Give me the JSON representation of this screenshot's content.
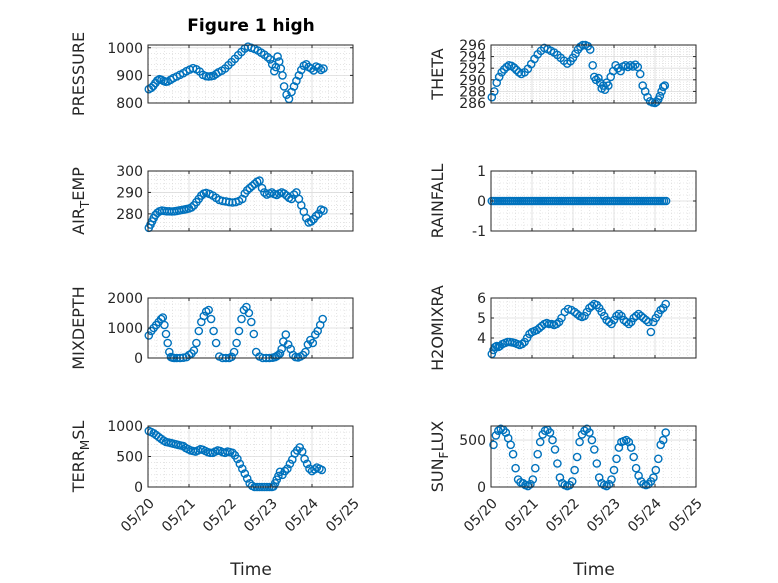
{
  "chart_data": [
    {
      "type": "scatter",
      "title": "Figure 1 high",
      "ylabel": {
        "main": "PRESSURE"
      },
      "xlim": [
        0,
        5
      ],
      "ylim": [
        800,
        1010
      ],
      "yticks": [
        800,
        900,
        1000
      ],
      "ytick_labels": [
        "800",
        "900",
        "1000"
      ],
      "xticks": [
        0,
        1,
        2,
        3,
        4,
        5
      ],
      "grid": true,
      "minor_grid": true,
      "x": [
        0.02,
        0.08,
        0.13,
        0.18,
        0.23,
        0.28,
        0.33,
        0.38,
        0.43,
        0.48,
        0.55,
        0.62,
        0.7,
        0.78,
        0.86,
        0.94,
        1.02,
        1.1,
        1.18,
        1.26,
        1.34,
        1.42,
        1.48,
        1.54,
        1.6,
        1.66,
        1.72,
        1.8,
        1.88,
        1.96,
        2.04,
        2.12,
        2.2,
        2.28,
        2.36,
        2.44,
        2.52,
        2.6,
        2.68,
        2.76,
        2.84,
        2.92,
        2.98,
        3.03,
        3.08,
        3.12,
        3.16,
        3.2,
        3.24,
        3.28,
        3.32,
        3.38,
        3.44,
        3.5,
        3.56,
        3.62,
        3.68,
        3.74,
        3.8,
        3.86,
        3.92,
        3.98,
        4.04,
        4.1,
        4.16,
        4.22,
        4.28
      ],
      "y": [
        850,
        855,
        862,
        872,
        882,
        886,
        884,
        880,
        877,
        878,
        884,
        890,
        896,
        902,
        908,
        915,
        921,
        926,
        922,
        914,
        902,
        897,
        896,
        897,
        899,
        905,
        911,
        917,
        925,
        937,
        948,
        960,
        973,
        985,
        997,
        1004,
        1000,
        996,
        990,
        982,
        975,
        966,
        958,
        940,
        915,
        930,
        968,
        950,
        925,
        900,
        860,
        830,
        815,
        840,
        860,
        880,
        900,
        920,
        935,
        940,
        930,
        925,
        918,
        932,
        928,
        920,
        925
      ]
    },
    {
      "type": "scatter",
      "title": "",
      "ylabel": {
        "main": "THETA"
      },
      "xlim": [
        0,
        5
      ],
      "ylim": [
        286,
        296
      ],
      "yticks": [
        286,
        288,
        290,
        292,
        294,
        296
      ],
      "ytick_labels": [
        "286",
        "288",
        "290",
        "292",
        "294",
        "296"
      ],
      "xticks": [
        0,
        1,
        2,
        3,
        4,
        5
      ],
      "grid": true,
      "minor_grid": true,
      "x": [
        0.02,
        0.08,
        0.14,
        0.2,
        0.26,
        0.32,
        0.38,
        0.44,
        0.5,
        0.56,
        0.62,
        0.68,
        0.74,
        0.82,
        0.9,
        0.98,
        1.06,
        1.14,
        1.22,
        1.3,
        1.38,
        1.46,
        1.54,
        1.62,
        1.7,
        1.78,
        1.86,
        1.94,
        2.0,
        2.06,
        2.12,
        2.18,
        2.24,
        2.3,
        2.36,
        2.42,
        2.48,
        2.52,
        2.56,
        2.62,
        2.66,
        2.7,
        2.74,
        2.78,
        2.82,
        2.86,
        2.92,
        2.98,
        3.04,
        3.1,
        3.16,
        3.22,
        3.28,
        3.34,
        3.4,
        3.46,
        3.52,
        3.58,
        3.64,
        3.7,
        3.76,
        3.82,
        3.88,
        3.94,
        4.0,
        4.04,
        4.08,
        4.12,
        4.16,
        4.2,
        4.24
      ],
      "y": [
        287,
        288,
        289.5,
        290.5,
        291.3,
        291.8,
        292.2,
        292.5,
        292.4,
        292.1,
        291.7,
        291.3,
        291.0,
        291.3,
        291.9,
        292.7,
        293.6,
        294.4,
        295.0,
        295.5,
        295.3,
        295.0,
        294.7,
        294.3,
        293.8,
        293.3,
        292.8,
        293.2,
        293.8,
        294.5,
        295.2,
        295.7,
        296.0,
        296.0,
        295.8,
        295.2,
        292.5,
        290.5,
        290.0,
        290.3,
        289.5,
        288.5,
        289,
        288.3,
        289.5,
        289,
        290.5,
        291.5,
        292.5,
        292,
        291.5,
        292.3,
        292.5,
        292.2,
        292.5,
        292.3,
        292.6,
        292.2,
        291.0,
        289.0,
        288.0,
        287.0,
        286.3,
        286.1,
        286.0,
        286.2,
        286.6,
        287.2,
        288.0,
        288.8,
        289.0
      ]
    },
    {
      "type": "scatter",
      "title": "",
      "ylabel": {
        "main": "AIR",
        "sub": "T",
        "main2": "EMP"
      },
      "xlim": [
        0,
        5
      ],
      "ylim": [
        272,
        300
      ],
      "yticks": [
        280,
        290,
        300
      ],
      "ytick_labels": [
        "280",
        "290",
        "300"
      ],
      "xticks": [
        0,
        1,
        2,
        3,
        4,
        5
      ],
      "grid": true,
      "minor_grid": true,
      "x": [
        0.02,
        0.06,
        0.1,
        0.14,
        0.18,
        0.23,
        0.28,
        0.34,
        0.4,
        0.46,
        0.52,
        0.58,
        0.64,
        0.7,
        0.76,
        0.82,
        0.88,
        0.94,
        1.0,
        1.06,
        1.12,
        1.18,
        1.24,
        1.3,
        1.36,
        1.42,
        1.5,
        1.58,
        1.66,
        1.74,
        1.82,
        1.9,
        1.98,
        2.06,
        2.14,
        2.22,
        2.3,
        2.36,
        2.42,
        2.48,
        2.54,
        2.6,
        2.66,
        2.72,
        2.78,
        2.84,
        2.9,
        2.96,
        3.02,
        3.08,
        3.14,
        3.2,
        3.26,
        3.32,
        3.38,
        3.44,
        3.5,
        3.56,
        3.62,
        3.68,
        3.74,
        3.8,
        3.86,
        3.92,
        3.98,
        4.04,
        4.1,
        4.16,
        4.22,
        4.28
      ],
      "y": [
        273.5,
        275,
        276.5,
        278,
        279.5,
        280.5,
        281.2,
        281.5,
        281.4,
        281.2,
        281.2,
        281.1,
        281.2,
        281.4,
        281.6,
        281.8,
        282,
        282.2,
        282.5,
        283,
        284,
        285.5,
        287,
        288.5,
        289.5,
        289.8,
        289.3,
        288.5,
        287.5,
        286.5,
        286,
        285.8,
        285.5,
        285.3,
        285.5,
        286,
        287,
        289.5,
        291,
        292,
        293,
        294,
        295,
        295.5,
        292,
        290,
        289,
        289.5,
        290,
        289.2,
        288.8,
        289.5,
        290,
        289.5,
        288.5,
        287.5,
        287,
        289,
        290,
        287,
        284,
        281,
        278,
        276,
        276.5,
        277.5,
        279,
        280,
        282,
        281.5
      ]
    },
    {
      "type": "scatter",
      "title": "",
      "ylabel": {
        "main": "RAINFALL"
      },
      "xlim": [
        0,
        5
      ],
      "ylim": [
        -1,
        1
      ],
      "yticks": [
        -1,
        0,
        1
      ],
      "ytick_labels": [
        "-1",
        "0",
        "1"
      ],
      "xticks": [
        0,
        1,
        2,
        3,
        4,
        5
      ],
      "grid": true,
      "minor_grid": true,
      "constant_series": {
        "x_start": 0.02,
        "x_end": 4.3,
        "step": 0.05,
        "y": 0
      }
    },
    {
      "type": "scatter",
      "title": "",
      "ylabel": {
        "main": "MIXDEPTH"
      },
      "xlim": [
        0,
        5
      ],
      "ylim": [
        0,
        2000
      ],
      "yticks": [
        0,
        1000,
        2000
      ],
      "ytick_labels": [
        "0",
        "1000",
        "2000"
      ],
      "xticks": [
        0,
        1,
        2,
        3,
        4,
        5
      ],
      "grid": true,
      "minor_grid": true,
      "x": [
        0.02,
        0.08,
        0.14,
        0.2,
        0.26,
        0.32,
        0.36,
        0.4,
        0.44,
        0.48,
        0.52,
        0.56,
        0.6,
        0.64,
        0.7,
        0.78,
        0.86,
        0.94,
        1.0,
        1.06,
        1.12,
        1.18,
        1.24,
        1.3,
        1.36,
        1.42,
        1.48,
        1.54,
        1.6,
        1.66,
        1.74,
        1.82,
        1.9,
        1.98,
        2.04,
        2.1,
        2.16,
        2.22,
        2.28,
        2.34,
        2.4,
        2.46,
        2.52,
        2.58,
        2.64,
        2.72,
        2.8,
        2.88,
        2.96,
        3.04,
        3.1,
        3.14,
        3.18,
        3.22,
        3.26,
        3.3,
        3.36,
        3.42,
        3.48,
        3.54,
        3.6,
        3.66,
        3.72,
        3.78,
        3.84,
        3.9,
        3.96,
        4.02,
        4.08,
        4.14,
        4.2,
        4.26
      ],
      "y": [
        750,
        900,
        1000,
        1100,
        1200,
        1300,
        1350,
        1100,
        800,
        500,
        200,
        30,
        10,
        0,
        0,
        0,
        10,
        30,
        100,
        150,
        250,
        500,
        900,
        1200,
        1400,
        1550,
        1600,
        1300,
        900,
        500,
        50,
        0,
        0,
        0,
        40,
        200,
        500,
        900,
        1300,
        1600,
        1700,
        1500,
        1200,
        800,
        200,
        50,
        0,
        0,
        0,
        10,
        30,
        60,
        100,
        150,
        300,
        550,
        780,
        450,
        300,
        100,
        30,
        20,
        50,
        100,
        200,
        450,
        600,
        500,
        780,
        900,
        1100,
        1300
      ]
    },
    {
      "type": "scatter",
      "title": "",
      "ylabel": {
        "main": "H2OMIXRA"
      },
      "xlim": [
        0,
        5
      ],
      "ylim": [
        3,
        6
      ],
      "yticks": [
        4,
        5,
        6
      ],
      "ytick_labels": [
        "4",
        "5",
        "6"
      ],
      "xticks": [
        0,
        1,
        2,
        3,
        4,
        5
      ],
      "grid": true,
      "minor_grid": true,
      "x": [
        0.02,
        0.06,
        0.1,
        0.14,
        0.18,
        0.22,
        0.28,
        0.34,
        0.4,
        0.46,
        0.52,
        0.58,
        0.64,
        0.7,
        0.76,
        0.82,
        0.88,
        0.94,
        1.0,
        1.06,
        1.12,
        1.18,
        1.24,
        1.3,
        1.36,
        1.42,
        1.48,
        1.54,
        1.6,
        1.66,
        1.72,
        1.8,
        1.88,
        1.96,
        2.04,
        2.1,
        2.16,
        2.22,
        2.28,
        2.34,
        2.4,
        2.46,
        2.52,
        2.58,
        2.64,
        2.7,
        2.76,
        2.82,
        2.88,
        2.94,
        3.0,
        3.06,
        3.12,
        3.18,
        3.24,
        3.3,
        3.36,
        3.42,
        3.48,
        3.54,
        3.6,
        3.66,
        3.72,
        3.78,
        3.84,
        3.9,
        3.96,
        4.02,
        4.08,
        4.14,
        4.2,
        4.26
      ],
      "y": [
        3.2,
        3.4,
        3.55,
        3.6,
        3.55,
        3.6,
        3.7,
        3.75,
        3.8,
        3.8,
        3.78,
        3.75,
        3.7,
        3.65,
        3.7,
        3.8,
        4.0,
        4.2,
        4.3,
        4.35,
        4.4,
        4.5,
        4.6,
        4.7,
        4.75,
        4.7,
        4.7,
        4.65,
        4.7,
        4.8,
        5.0,
        5.3,
        5.45,
        5.4,
        5.3,
        5.2,
        5.1,
        5.05,
        5.1,
        5.3,
        5.5,
        5.6,
        5.7,
        5.65,
        5.5,
        5.3,
        5.1,
        4.9,
        4.8,
        4.7,
        4.9,
        5.1,
        5.2,
        5.1,
        4.9,
        4.8,
        4.7,
        4.8,
        5.0,
        5.1,
        5.2,
        5.1,
        5.0,
        4.9,
        4.8,
        4.3,
        4.8,
        5.0,
        5.2,
        5.4,
        5.5,
        5.7
      ]
    },
    {
      "type": "scatter",
      "title": "",
      "ylabel": {
        "main": "TERR",
        "sub": "M",
        "main2": "SL"
      },
      "xlim": [
        0,
        5
      ],
      "ylim": [
        0,
        1000
      ],
      "yticks": [
        0,
        500,
        1000
      ],
      "ytick_labels": [
        "0",
        "500",
        "1000"
      ],
      "xticks": [
        0,
        1,
        2,
        3,
        4,
        5
      ],
      "grid": true,
      "minor_grid": true,
      "x": [
        0.02,
        0.08,
        0.14,
        0.2,
        0.26,
        0.32,
        0.38,
        0.44,
        0.5,
        0.56,
        0.62,
        0.68,
        0.74,
        0.8,
        0.86,
        0.92,
        0.98,
        1.04,
        1.1,
        1.16,
        1.22,
        1.28,
        1.34,
        1.4,
        1.46,
        1.52,
        1.58,
        1.64,
        1.7,
        1.76,
        1.82,
        1.88,
        1.94,
        2.0,
        2.06,
        2.12,
        2.18,
        2.24,
        2.3,
        2.36,
        2.42,
        2.48,
        2.54,
        2.6,
        2.66,
        2.72,
        2.78,
        2.84,
        2.9,
        2.96,
        3.02,
        3.06,
        3.1,
        3.14,
        3.18,
        3.22,
        3.28,
        3.34,
        3.4,
        3.46,
        3.52,
        3.58,
        3.64,
        3.7,
        3.76,
        3.82,
        3.88,
        3.94,
        4.0,
        4.06,
        4.12,
        4.18,
        4.24
      ],
      "y": [
        920,
        900,
        880,
        850,
        820,
        790,
        760,
        740,
        730,
        720,
        710,
        700,
        690,
        680,
        670,
        640,
        620,
        600,
        590,
        580,
        600,
        620,
        610,
        590,
        570,
        560,
        560,
        580,
        600,
        590,
        570,
        560,
        580,
        570,
        560,
        520,
        460,
        380,
        300,
        220,
        140,
        60,
        20,
        0,
        0,
        0,
        0,
        0,
        0,
        0,
        0,
        10,
        60,
        120,
        180,
        250,
        200,
        260,
        300,
        380,
        450,
        550,
        600,
        650,
        580,
        460,
        380,
        300,
        260,
        290,
        320,
        300,
        280
      ]
    },
    {
      "type": "scatter",
      "title": "",
      "ylabel": {
        "main": "SUN",
        "sub": "F",
        "main2": "LUX"
      },
      "xlim": [
        0,
        5
      ],
      "ylim": [
        0,
        650
      ],
      "yticks": [
        0,
        500
      ],
      "ytick_labels": [
        "0",
        "500"
      ],
      "xticks": [
        0,
        1,
        2,
        3,
        4,
        5
      ],
      "xtick_labels": [
        "05/20",
        "05/21",
        "05/22",
        "05/23",
        "05/24",
        "05/25"
      ],
      "grid": true,
      "minor_grid": true,
      "x": [
        0.06,
        0.12,
        0.18,
        0.24,
        0.3,
        0.36,
        0.42,
        0.48,
        0.54,
        0.6,
        0.66,
        0.72,
        0.78,
        0.84,
        0.9,
        0.96,
        1.02,
        1.08,
        1.14,
        1.2,
        1.26,
        1.32,
        1.38,
        1.44,
        1.5,
        1.56,
        1.62,
        1.68,
        1.74,
        1.8,
        1.86,
        1.92,
        1.98,
        2.04,
        2.1,
        2.16,
        2.22,
        2.28,
        2.34,
        2.4,
        2.46,
        2.52,
        2.58,
        2.64,
        2.7,
        2.76,
        2.82,
        2.88,
        2.94,
        3.0,
        3.06,
        3.12,
        3.18,
        3.24,
        3.3,
        3.36,
        3.42,
        3.48,
        3.54,
        3.6,
        3.66,
        3.72,
        3.78,
        3.84,
        3.9,
        3.96,
        4.02,
        4.08,
        4.14,
        4.2,
        4.26
      ],
      "y": [
        450,
        550,
        600,
        620,
        610,
        580,
        520,
        450,
        350,
        200,
        80,
        50,
        40,
        20,
        10,
        30,
        80,
        200,
        350,
        480,
        560,
        600,
        610,
        580,
        500,
        400,
        250,
        100,
        40,
        20,
        10,
        20,
        60,
        180,
        320,
        480,
        560,
        600,
        620,
        580,
        500,
        400,
        250,
        100,
        40,
        20,
        10,
        30,
        80,
        180,
        300,
        420,
        480,
        490,
        500,
        480,
        420,
        320,
        200,
        120,
        60,
        30,
        20,
        30,
        60,
        100,
        180,
        300,
        450,
        500,
        580
      ]
    }
  ],
  "xlabels": [
    "Time",
    "Time"
  ]
}
